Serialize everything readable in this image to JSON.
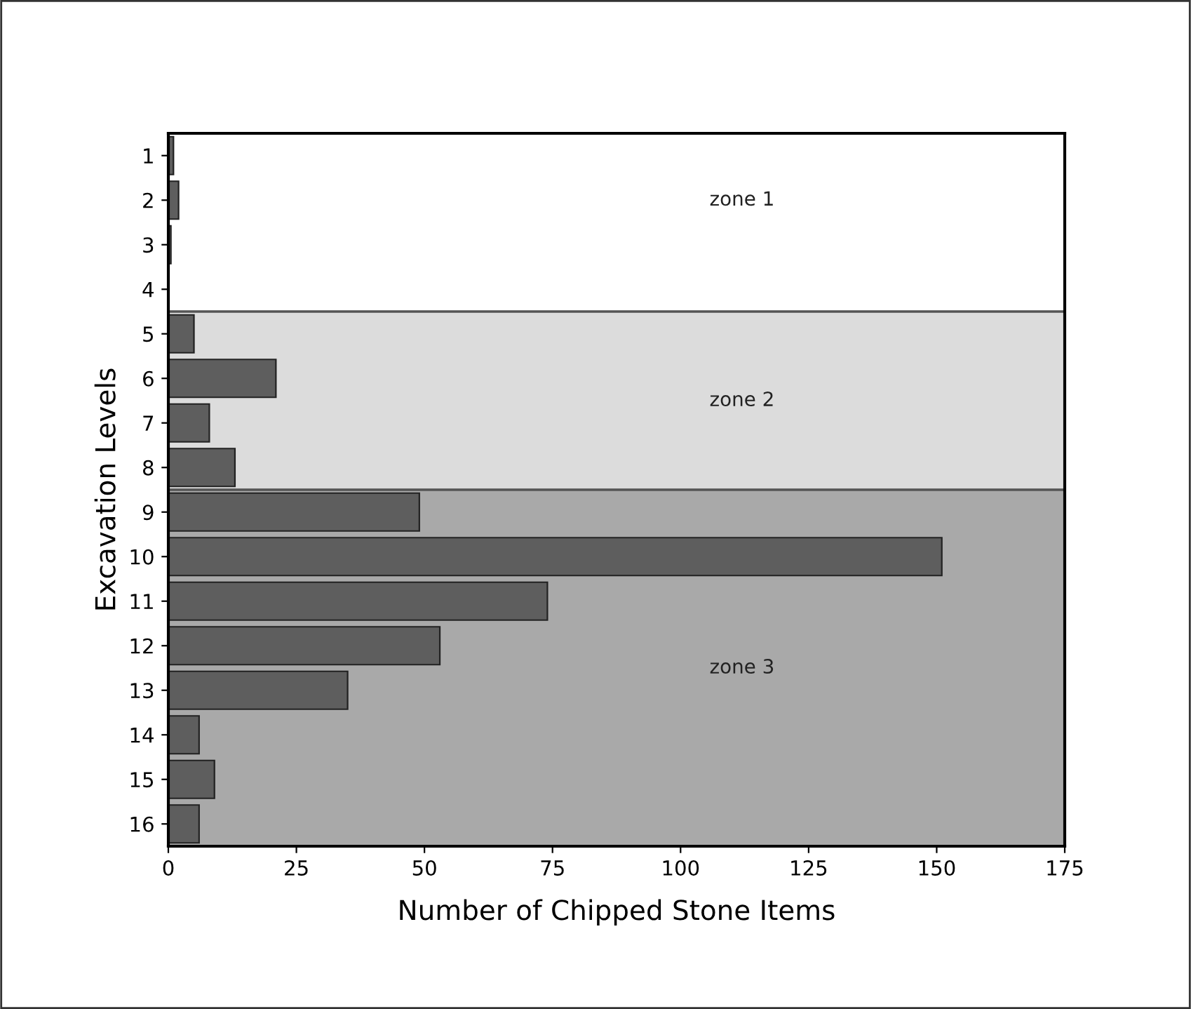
{
  "chart_data": {
    "type": "bar",
    "orientation": "horizontal",
    "xlabel": "Number of Chipped Stone Items",
    "ylabel": "Excavation Levels",
    "categories": [
      "1",
      "2",
      "3",
      "4",
      "5",
      "6",
      "7",
      "8",
      "9",
      "10",
      "11",
      "12",
      "13",
      "14",
      "15",
      "16"
    ],
    "values": [
      1,
      2,
      0.5,
      0,
      5,
      21,
      8,
      13,
      49,
      151,
      74,
      53,
      35,
      6,
      9,
      6
    ],
    "color": "#5e5e5e",
    "xlim": [
      0,
      175
    ],
    "xticks": [
      0,
      25,
      50,
      75,
      100,
      125,
      150,
      175
    ],
    "grid": false,
    "annotations": [
      "zone 1"
    ],
    "bands": [
      {
        "axis": "y",
        "from": "5",
        "to": "8",
        "label": "zone 2",
        "color": "#dcdcdc"
      },
      {
        "axis": "y",
        "from": "9",
        "to": "16",
        "label": "zone 3",
        "color": "#a9a9a9"
      }
    ]
  }
}
